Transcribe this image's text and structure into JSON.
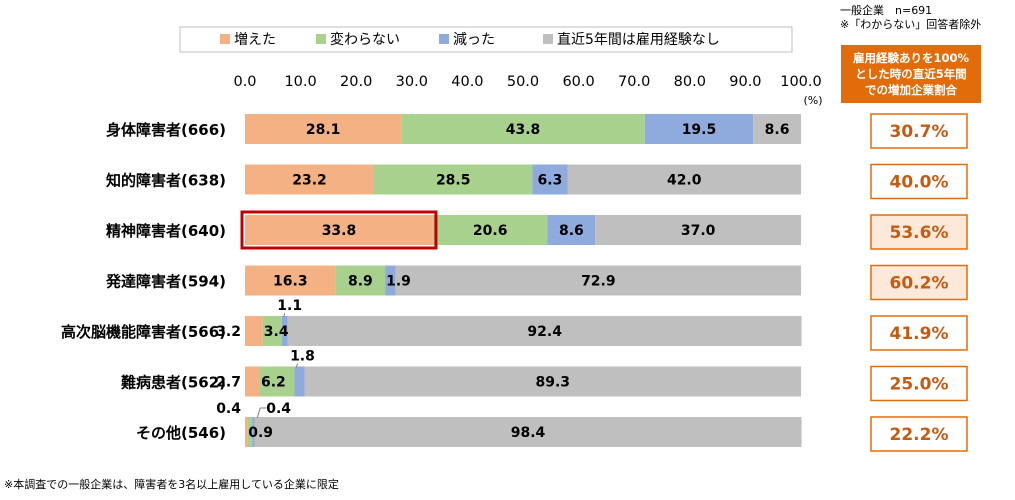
{
  "note": {
    "line1": "一般企業　n=691",
    "line2": "※「わからない」回答者除外"
  },
  "side_header": {
    "line1": "雇用経験ありを100%",
    "line2": "とした時の直近5年間",
    "line3": "での増加企業割合"
  },
  "footnote": "※本調査での一般企業は、障害者を3名以上雇用している企業に限定",
  "chart_data": {
    "type": "bar",
    "orientation": "horizontal",
    "stacked": true,
    "x_unit": "(%)",
    "xlim": [
      0,
      100
    ],
    "xticks": [
      "0.0",
      "10.0",
      "20.0",
      "30.0",
      "40.0",
      "50.0",
      "60.0",
      "70.0",
      "80.0",
      "90.0",
      "100.0"
    ],
    "legend_position": "top",
    "categories": [
      "身体障害者(666)",
      "知的障害者(638)",
      "精神障害者(640)",
      "発達障害者(594)",
      "高次脳機能障害者(566)",
      "難病患者(562)",
      "その他(546)"
    ],
    "series": [
      {
        "name": "増えた",
        "color": "#f4b183",
        "values": [
          28.1,
          23.2,
          33.8,
          16.3,
          3.2,
          2.7,
          0.4
        ]
      },
      {
        "name": "変わらない",
        "color": "#a9d18e",
        "values": [
          43.8,
          28.5,
          20.6,
          8.9,
          3.4,
          6.2,
          0.9
        ]
      },
      {
        "name": "減った",
        "color": "#8faadc",
        "values": [
          19.5,
          6.3,
          8.6,
          1.9,
          1.1,
          1.8,
          0.4
        ]
      },
      {
        "name": "直近5年間は雇用経験なし",
        "color": "#bfbfbf",
        "values": [
          8.6,
          42.0,
          37.0,
          72.9,
          92.4,
          89.3,
          98.4
        ]
      }
    ],
    "increase_rate_labels": [
      "30.7%",
      "40.0%",
      "53.6%",
      "60.2%",
      "41.9%",
      "25.0%",
      "22.2%"
    ],
    "highlighted_increase_rates": [
      2,
      3
    ],
    "highlighted_bar": {
      "category": 2,
      "series": 0
    }
  }
}
